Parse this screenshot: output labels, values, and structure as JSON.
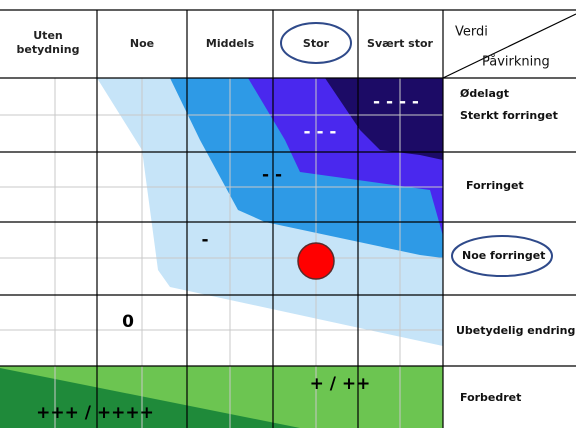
{
  "header": {
    "columns": [
      "Uten betydning",
      "Noe",
      "Middels",
      "Stor",
      "Svært stor"
    ],
    "corner": {
      "top": "Verdi",
      "bottom": "Påvirkning"
    }
  },
  "rows": [
    {
      "labels": [
        "Ødelagt",
        "Sterkt forringet"
      ]
    },
    {
      "labels": [
        "Forringet"
      ]
    },
    {
      "labels": [
        "Noe forringet"
      ]
    },
    {
      "labels": [
        "Ubetydelig endring"
      ]
    },
    {
      "labels": [
        "Forbedret"
      ]
    }
  ],
  "zone_labels": [
    "- - - -",
    "- - -",
    "- -",
    "-",
    "0",
    "+ / ++",
    "+++ / ++++"
  ]
}
